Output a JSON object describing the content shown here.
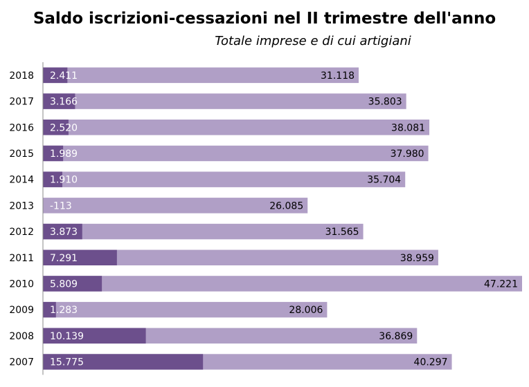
{
  "chart_data": {
    "type": "bar",
    "orientation": "horizontal",
    "title": "Saldo iscrizioni-cessazioni nel II trimestre dell'anno",
    "subtitle": "Totale imprese e di cui artigiani",
    "categories": [
      "2018",
      "2017",
      "2016",
      "2015",
      "2014",
      "2013",
      "2012",
      "2011",
      "2010",
      "2009",
      "2008",
      "2007"
    ],
    "series": [
      {
        "color": "#b09fc6",
        "values": [
          31118,
          35803,
          38081,
          37980,
          35704,
          26085,
          31565,
          38959,
          47221,
          28006,
          36869,
          40297
        ],
        "labels": [
          "31.118",
          "35.803",
          "38.081",
          "37.980",
          "35.704",
          "26.085",
          "31.565",
          "38.959",
          "47.221",
          "28.006",
          "36.869",
          "40.297"
        ]
      },
      {
        "color": "#6c4f8c",
        "values": [
          2411,
          3166,
          2520,
          1989,
          1910,
          -113,
          3873,
          7291,
          5809,
          1283,
          10139,
          15775
        ],
        "labels": [
          "2.411",
          "3.166",
          "2.520",
          "1.989",
          "1.910",
          "-113",
          "3.873",
          "7.291",
          "5.809",
          "1.283",
          "10.139",
          "15.775"
        ]
      }
    ],
    "grid": false,
    "legend": "none"
  }
}
